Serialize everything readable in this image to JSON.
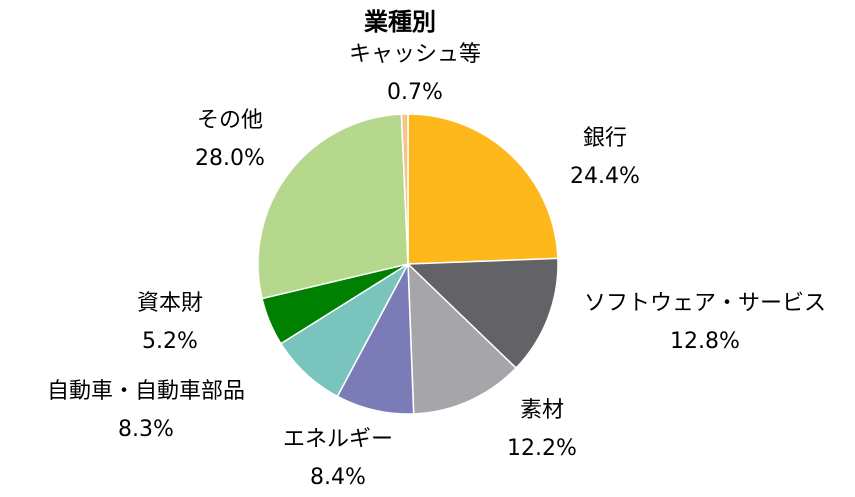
{
  "chart_data": {
    "type": "pie",
    "title": "業種別",
    "start_angle_deg": 0,
    "direction": "clockwise",
    "slices": [
      {
        "label": "銀行",
        "value": 24.4,
        "display": "24.4%",
        "color": "#FFB81C"
      },
      {
        "label": "ソフトウェア・サービス",
        "value": 12.8,
        "display": "12.8%",
        "color": "#626267"
      },
      {
        "label": "素材",
        "value": 12.2,
        "display": "12.2%",
        "color": "#A6A6AA"
      },
      {
        "label": "エネルギー",
        "value": 8.4,
        "display": "8.4%",
        "color": "#7B7BB8"
      },
      {
        "label": "自動車・自動車部品",
        "value": 8.3,
        "display": "8.3%",
        "color": "#79C4BC"
      },
      {
        "label": "資本財",
        "value": 5.2,
        "display": "5.2%",
        "color": "#008000"
      },
      {
        "label": "その他",
        "value": 28.0,
        "display": "28.0%",
        "color": "#B5D88C"
      },
      {
        "label": "キャッシュ等",
        "value": 0.7,
        "display": "0.7%",
        "color": "#F5C48C"
      }
    ]
  }
}
